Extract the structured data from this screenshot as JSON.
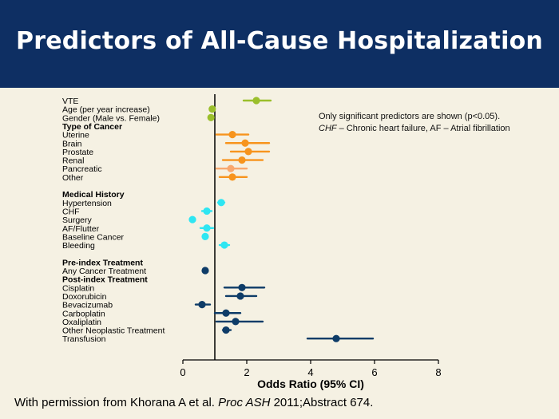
{
  "slide": {
    "title": "Predictors of All-Cause Hospitalization",
    "note_line1": "Only significant predictors are shown (p<0.05).",
    "note_abbr1": "CHF",
    "note_def1": " – Chronic heart failure, AF – Atrial fibrillation",
    "footer_text": "With permission from Khorana A et al. ",
    "footer_journal": "Proc ASH",
    "footer_rest": " 2011;Abstract 674."
  },
  "chart_data": {
    "type": "scatter",
    "xlabel": "Odds Ratio (95% CI)",
    "xlim": [
      0,
      8
    ],
    "xticks": [
      0,
      2,
      4,
      6,
      8
    ],
    "reference_line": 1,
    "colors": {
      "general": "#9bbf2c",
      "cancer": "#f7941d",
      "pancreatic": "#f9a86e",
      "medical": "#2ee6f2",
      "treatment": "#0e3c68"
    },
    "rows": [
      {
        "label": "VTE",
        "or": 2.3,
        "lo": 1.9,
        "hi": 2.75,
        "color": "general"
      },
      {
        "label": "Age (per year increase)",
        "or": 0.92,
        "lo": 0.88,
        "hi": 0.96,
        "color": "general"
      },
      {
        "label": "Gender (Male vs. Female)",
        "or": 0.88,
        "lo": 0.84,
        "hi": 0.92,
        "color": "general"
      },
      {
        "label": "Type of Cancer",
        "header": true
      },
      {
        "label": "Uterine",
        "or": 1.55,
        "lo": 1.05,
        "hi": 2.05,
        "color": "cancer"
      },
      {
        "label": "Brain",
        "or": 1.95,
        "lo": 1.35,
        "hi": 2.7,
        "color": "cancer"
      },
      {
        "label": "Prostate",
        "or": 2.05,
        "lo": 1.5,
        "hi": 2.7,
        "color": "cancer"
      },
      {
        "label": "Renal",
        "or": 1.85,
        "lo": 1.25,
        "hi": 2.5,
        "color": "cancer"
      },
      {
        "label": "Pancreatic",
        "or": 1.5,
        "lo": 1.05,
        "hi": 2.0,
        "color": "pancreatic"
      },
      {
        "label": "Other",
        "or": 1.55,
        "lo": 1.15,
        "hi": 2.0,
        "color": "cancer"
      },
      {
        "label": "",
        "spacer": true
      },
      {
        "label": "Medical History",
        "header": true
      },
      {
        "label": "Hypertension",
        "or": 1.2,
        "lo": 1.1,
        "hi": 1.3,
        "color": "medical"
      },
      {
        "label": "CHF",
        "or": 0.75,
        "lo": 0.6,
        "hi": 0.9,
        "color": "medical"
      },
      {
        "label": "Surgery",
        "or": 0.3,
        "lo": 0.25,
        "hi": 0.35,
        "color": "medical"
      },
      {
        "label": "AF/Flutter",
        "or": 0.75,
        "lo": 0.55,
        "hi": 0.95,
        "color": "medical"
      },
      {
        "label": "Baseline Cancer",
        "or": 0.7,
        "lo": 0.65,
        "hi": 0.75,
        "color": "medical"
      },
      {
        "label": "Bleeding",
        "or": 1.3,
        "lo": 1.15,
        "hi": 1.45,
        "color": "medical"
      },
      {
        "label": "",
        "spacer": true
      },
      {
        "label": "Pre-index  Treatment",
        "header": true
      },
      {
        "label": "Any Cancer Treatment",
        "or": 0.7,
        "lo": 0.65,
        "hi": 0.75,
        "color": "treatment"
      },
      {
        "label": "Post-index  Treatment",
        "header": true
      },
      {
        "label": "Cisplatin",
        "or": 1.85,
        "lo": 1.3,
        "hi": 2.55,
        "color": "treatment"
      },
      {
        "label": "Doxorubicin",
        "or": 1.8,
        "lo": 1.35,
        "hi": 2.3,
        "color": "treatment"
      },
      {
        "label": "Bevacizumab",
        "or": 0.6,
        "lo": 0.4,
        "hi": 0.85,
        "color": "treatment"
      },
      {
        "label": "Carboplatin",
        "or": 1.35,
        "lo": 1.0,
        "hi": 1.8,
        "color": "treatment"
      },
      {
        "label": "Oxaliplatin",
        "or": 1.65,
        "lo": 1.05,
        "hi": 2.5,
        "color": "treatment"
      },
      {
        "label": "Other Neoplastic Treatment",
        "or": 1.35,
        "lo": 1.25,
        "hi": 1.5,
        "color": "treatment"
      },
      {
        "label": "Transfusion",
        "or": 4.8,
        "lo": 3.9,
        "hi": 5.95,
        "color": "treatment"
      }
    ]
  }
}
